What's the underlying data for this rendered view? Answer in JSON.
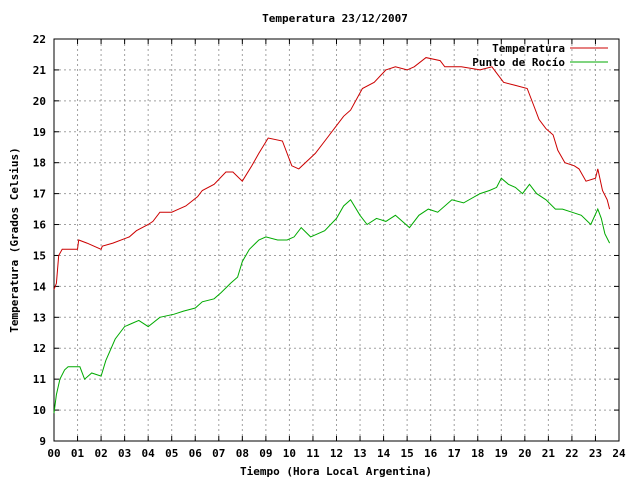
{
  "chart_data": {
    "type": "line",
    "title": "Temperatura 23/12/2007",
    "xlabel": "Tiempo (Hora Local Argentina)",
    "ylabel": "Temperatura (Grados Celsius)",
    "xlim": [
      0,
      24
    ],
    "ylim": [
      9,
      22
    ],
    "grid": true,
    "legend_position": "top-right",
    "x_tick_labels": [
      "00",
      "01",
      "02",
      "03",
      "04",
      "05",
      "06",
      "07",
      "08",
      "09",
      "10",
      "11",
      "12",
      "13",
      "14",
      "15",
      "16",
      "17",
      "18",
      "19",
      "20",
      "21",
      "22",
      "23",
      "24"
    ],
    "y_tick_labels": [
      "9",
      "10",
      "11",
      "12",
      "13",
      "14",
      "15",
      "16",
      "17",
      "18",
      "19",
      "20",
      "21",
      "22"
    ],
    "series": [
      {
        "name": "Temperatura",
        "color": "#cc0000",
        "x": [
          0,
          0.1,
          0.2,
          0.35,
          0.5,
          1.0,
          1.05,
          1.4,
          2.0,
          2.05,
          2.5,
          3.2,
          3.5,
          4.0,
          4.2,
          4.5,
          5.0,
          5.3,
          5.6,
          6.1,
          6.3,
          6.8,
          7.3,
          7.6,
          8.0,
          8.4,
          8.7,
          9.1,
          9.7,
          10.1,
          10.4,
          11.1,
          11.6,
          12.3,
          12.6,
          13.1,
          13.6,
          14.1,
          14.5,
          15.0,
          15.3,
          15.8,
          16.4,
          16.6,
          17.3,
          18.1,
          18.6,
          19.1,
          19.6,
          20.1,
          20.4,
          20.6,
          20.9,
          21.2,
          21.4,
          21.7,
          22.1,
          22.3,
          22.6,
          23.0,
          23.1,
          23.3,
          23.5,
          23.6
        ],
        "values": [
          13.9,
          14.1,
          15.0,
          15.2,
          15.2,
          15.2,
          15.5,
          15.4,
          15.2,
          15.3,
          15.4,
          15.6,
          15.8,
          16.0,
          16.1,
          16.4,
          16.4,
          16.5,
          16.6,
          16.9,
          17.1,
          17.3,
          17.7,
          17.7,
          17.4,
          17.9,
          18.3,
          18.8,
          18.7,
          17.9,
          17.8,
          18.3,
          18.8,
          19.5,
          19.7,
          20.4,
          20.6,
          21.0,
          21.1,
          21.0,
          21.1,
          21.4,
          21.3,
          21.1,
          21.1,
          21.0,
          21.1,
          20.6,
          20.5,
          20.4,
          19.8,
          19.4,
          19.1,
          18.9,
          18.4,
          18.0,
          17.9,
          17.8,
          17.4,
          17.5,
          17.8,
          17.1,
          16.8,
          16.5
        ]
      },
      {
        "name": "Punto de Rocío",
        "color": "#00aa00",
        "x": [
          0,
          0.1,
          0.25,
          0.45,
          0.6,
          1.1,
          1.3,
          1.6,
          2.0,
          2.2,
          2.6,
          3.0,
          3.3,
          3.6,
          4.0,
          4.5,
          5.1,
          5.5,
          6.0,
          6.3,
          6.8,
          7.1,
          7.5,
          7.8,
          8.0,
          8.3,
          8.7,
          9.0,
          9.5,
          9.9,
          10.2,
          10.5,
          10.9,
          11.5,
          12.0,
          12.3,
          12.6,
          13.0,
          13.3,
          13.7,
          14.1,
          14.5,
          15.1,
          15.5,
          15.9,
          16.3,
          16.9,
          17.4,
          18.1,
          18.5,
          18.8,
          19.0,
          19.3,
          19.6,
          19.9,
          20.2,
          20.5,
          20.9,
          21.3,
          21.6,
          22.0,
          22.4,
          22.8,
          23.1,
          23.25,
          23.4,
          23.6
        ],
        "values": [
          9.9,
          10.5,
          11.0,
          11.3,
          11.4,
          11.4,
          11.0,
          11.2,
          11.1,
          11.6,
          12.3,
          12.7,
          12.8,
          12.9,
          12.7,
          13.0,
          13.1,
          13.2,
          13.3,
          13.5,
          13.6,
          13.8,
          14.1,
          14.3,
          14.8,
          15.2,
          15.5,
          15.6,
          15.5,
          15.5,
          15.6,
          15.9,
          15.6,
          15.8,
          16.2,
          16.6,
          16.8,
          16.3,
          16.0,
          16.2,
          16.1,
          16.3,
          15.9,
          16.3,
          16.5,
          16.4,
          16.8,
          16.7,
          17.0,
          17.1,
          17.2,
          17.5,
          17.3,
          17.2,
          17.0,
          17.3,
          17.0,
          16.8,
          16.5,
          16.5,
          16.4,
          16.3,
          16.0,
          16.5,
          16.2,
          15.7,
          15.4
        ]
      }
    ]
  }
}
